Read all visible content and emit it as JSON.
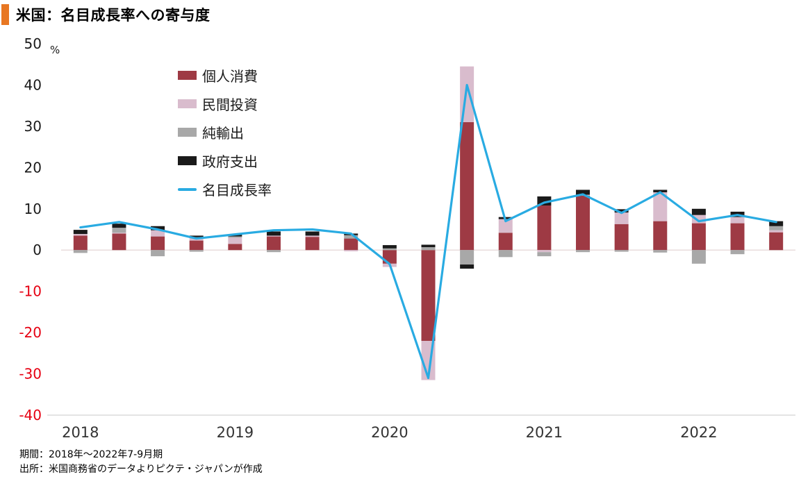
{
  "header": {
    "title": "米国：名目成長率への寄与度"
  },
  "footer": {
    "period": "期間：2018年～2022年7-9月期",
    "source": "出所：米国商務省のデータよりピクテ・ジャパンが作成"
  },
  "colors": {
    "accent_orange": "#e87722",
    "consumption": "#9e3a44",
    "investment": "#d9bccd",
    "net_exports": "#a8a8a8",
    "government": "#1a1a1a",
    "line": "#29abe2",
    "negative_tick": "#e60012",
    "positive_tick": "#1a1a1a",
    "zero_line": "#e8dcdc",
    "baseline": "#c9c9c9",
    "year_label": "#333333"
  },
  "chart_data": {
    "type": "bar",
    "subtype": "stacked-bar-with-line",
    "title": "米国：名目成長率への寄与度",
    "unit": "%",
    "ylim": [
      -40,
      50
    ],
    "yticks": [
      50,
      40,
      30,
      20,
      10,
      0,
      -10,
      -20,
      -30,
      -40
    ],
    "grid": false,
    "legend_position": "upper-left-inside",
    "x_quarters": [
      "2018Q1",
      "2018Q2",
      "2018Q3",
      "2018Q4",
      "2019Q1",
      "2019Q2",
      "2019Q3",
      "2019Q4",
      "2020Q1",
      "2020Q2",
      "2020Q3",
      "2020Q4",
      "2021Q1",
      "2021Q2",
      "2021Q3",
      "2021Q4",
      "2022Q1",
      "2022Q2",
      "2022Q3"
    ],
    "year_labels": [
      {
        "label": "2018",
        "quarter_index": 0
      },
      {
        "label": "2019",
        "quarter_index": 4
      },
      {
        "label": "2020",
        "quarter_index": 8
      },
      {
        "label": "2021",
        "quarter_index": 12
      },
      {
        "label": "2022",
        "quarter_index": 16
      }
    ],
    "series": [
      {
        "name": "個人消費",
        "color": "#9e3a44",
        "values": [
          3.5,
          4.0,
          3.3,
          2.3,
          1.5,
          3.3,
          3.2,
          2.8,
          -3.3,
          -22.0,
          31.0,
          4.2,
          10.8,
          13.2,
          6.3,
          7.0,
          6.5,
          6.5,
          4.3
        ]
      },
      {
        "name": "民間投資",
        "color": "#d9bccd",
        "values": [
          0.4,
          0.2,
          1.5,
          0.8,
          1.5,
          0.2,
          0.3,
          -0.3,
          -0.8,
          -9.5,
          13.5,
          3.3,
          -0.5,
          0.2,
          2.8,
          7.0,
          2.0,
          1.5,
          0.5
        ]
      },
      {
        "name": "純輸出",
        "color": "#a8a8a8",
        "values": [
          -0.7,
          1.2,
          -1.5,
          -0.4,
          0.3,
          -0.5,
          0.0,
          0.8,
          0.4,
          0.7,
          -3.5,
          -1.7,
          -1.0,
          -0.5,
          -0.4,
          -0.6,
          -3.3,
          -1.0,
          1.0
        ]
      },
      {
        "name": "政府支出",
        "color": "#1a1a1a",
        "values": [
          1.0,
          1.0,
          1.0,
          0.4,
          0.5,
          1.0,
          1.0,
          0.4,
          0.8,
          0.6,
          -1.0,
          0.5,
          2.2,
          1.2,
          0.8,
          0.6,
          1.5,
          1.3,
          1.2
        ]
      }
    ],
    "line_series": {
      "name": "名目成長率",
      "color": "#29abe2",
      "values": [
        5.5,
        6.8,
        5.0,
        2.8,
        3.8,
        4.8,
        5.0,
        4.0,
        -3.4,
        -31.0,
        40.0,
        7.0,
        11.5,
        13.5,
        9.0,
        14.0,
        7.0,
        8.5,
        6.8
      ]
    }
  }
}
